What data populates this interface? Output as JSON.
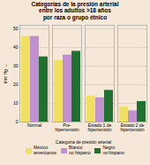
{
  "chart_data": {
    "type": "bar",
    "title": "Categorías de la presión arterial\nentre los adultos >18 años\npor raza o grupo étnico",
    "categories": [
      "Normal",
      "Pre-\nhipertensión",
      "Estado 1 de\nhipertensión",
      "Estado 2 de\nhipertensión"
    ],
    "series": [
      {
        "name": "México\namericanos",
        "color": "#f0e060",
        "values": [
          46,
          33,
          14,
          8
        ]
      },
      {
        "name": "Blanco\nno hispano",
        "color": "#c090d0",
        "values": [
          46,
          36,
          13,
          6
        ]
      },
      {
        "name": "Negro\nno hispano",
        "color": "#207030",
        "values": [
          35,
          38,
          17,
          11
        ]
      }
    ],
    "xlabel": "Categoría de presión arterial",
    "ylabel": "mm Hg",
    "ylim": [
      0,
      52
    ],
    "yticks": [
      0,
      10,
      20,
      30,
      40,
      50
    ],
    "grid": true,
    "legend": "bottom"
  }
}
